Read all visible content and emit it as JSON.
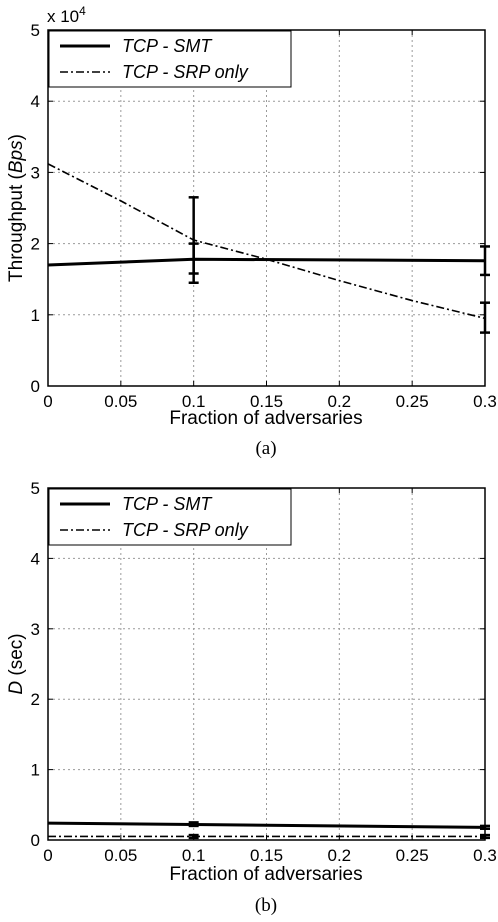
{
  "chart_data": [
    {
      "type": "line",
      "caption": "(a)",
      "xlabel": "Fraction of adversaries",
      "ylabel_prefix": "Throughput (",
      "ylabel_unit": "Bps",
      "ylabel_suffix": ")",
      "y_multiplier": "x 10",
      "y_multiplier_exp": "4",
      "xlim": [
        0,
        0.3
      ],
      "ylim": [
        0,
        5
      ],
      "x_ticks": [
        0,
        0.05,
        0.1,
        0.15,
        0.2,
        0.25,
        0.3
      ],
      "x_tick_labels": [
        "0",
        "0.05",
        "0.1",
        "0.15",
        "0.2",
        "0.25",
        "0.3"
      ],
      "y_ticks": [
        0,
        1,
        2,
        3,
        4,
        5
      ],
      "y_tick_labels": [
        "0",
        "1",
        "2",
        "3",
        "4",
        "5"
      ],
      "grid": true,
      "legend_position": "top-left",
      "series": [
        {
          "name": "TCP - SMT",
          "style": "solid",
          "x": [
            0,
            0.1,
            0.3
          ],
          "y": [
            1.7,
            1.78,
            1.76
          ],
          "errors": [
            {
              "x": 0.1,
              "low": 1.58,
              "high": 2.0
            },
            {
              "x": 0.3,
              "low": 1.56,
              "high": 1.96
            }
          ]
        },
        {
          "name": "TCP - SRP only",
          "style": "dashdot",
          "x": [
            0,
            0.05,
            0.1,
            0.15,
            0.2,
            0.25,
            0.3
          ],
          "y": [
            3.12,
            2.6,
            2.05,
            1.78,
            1.48,
            1.2,
            0.95
          ],
          "errors": [
            {
              "x": 0.1,
              "low": 1.45,
              "high": 2.65
            },
            {
              "x": 0.3,
              "low": 0.75,
              "high": 1.17
            }
          ]
        }
      ]
    },
    {
      "type": "line",
      "caption": "(b)",
      "xlabel": "Fraction of adversaries",
      "ylabel_var": "D",
      "ylabel_suffix": " (sec)",
      "xlim": [
        0,
        0.3
      ],
      "ylim": [
        0,
        5
      ],
      "x_ticks": [
        0,
        0.05,
        0.1,
        0.15,
        0.2,
        0.25,
        0.3
      ],
      "x_tick_labels": [
        "0",
        "0.05",
        "0.1",
        "0.15",
        "0.2",
        "0.25",
        "0.3"
      ],
      "y_ticks": [
        0,
        1,
        2,
        3,
        4,
        5
      ],
      "y_tick_labels": [
        "0",
        "1",
        "2",
        "3",
        "4",
        "5"
      ],
      "grid": true,
      "legend_position": "top-left",
      "series": [
        {
          "name": "TCP - SMT",
          "style": "solid",
          "x": [
            0,
            0.1,
            0.3
          ],
          "y": [
            0.24,
            0.22,
            0.18
          ],
          "errors": [
            {
              "x": 0.1,
              "low": 0.2,
              "high": 0.25
            },
            {
              "x": 0.3,
              "low": 0.16,
              "high": 0.2
            }
          ]
        },
        {
          "name": "TCP - SRP only",
          "style": "dashdot",
          "x": [
            0,
            0.1,
            0.3
          ],
          "y": [
            0.05,
            0.05,
            0.05
          ],
          "errors": [
            {
              "x": 0.1,
              "low": 0.03,
              "high": 0.07
            },
            {
              "x": 0.3,
              "low": 0.03,
              "high": 0.07
            }
          ]
        }
      ]
    }
  ]
}
